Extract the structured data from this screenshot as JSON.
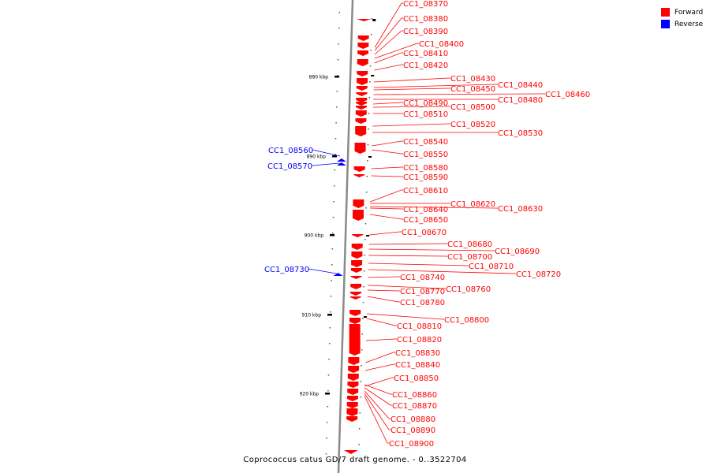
{
  "legend": [
    {
      "label": "Forward",
      "color": "#ff0000"
    },
    {
      "label": "Reverse",
      "color": "#0000ff"
    }
  ],
  "caption": "Coprococcus catus GD/7 draft genome. - 0..3522704",
  "scale_labels": [
    "880 kbp",
    "890 kbp",
    "900 kbp",
    "910 kbp",
    "920 kbp"
  ],
  "genes": [
    {
      "label": "CC1_08370",
      "strand": "forward"
    },
    {
      "label": "CC1_08380",
      "strand": "forward"
    },
    {
      "label": "CC1_08390",
      "strand": "forward"
    },
    {
      "label": "CC1_08400",
      "strand": "forward"
    },
    {
      "label": "CC1_08410",
      "strand": "forward"
    },
    {
      "label": "CC1_08420",
      "strand": "forward"
    },
    {
      "label": "CC1_08430",
      "strand": "forward"
    },
    {
      "label": "CC1_08440",
      "strand": "forward"
    },
    {
      "label": "CC1_08450",
      "strand": "forward"
    },
    {
      "label": "CC1_08460",
      "strand": "forward"
    },
    {
      "label": "CC1_08480",
      "strand": "forward"
    },
    {
      "label": "CC1_08490",
      "strand": "forward"
    },
    {
      "label": "CC1_08500",
      "strand": "forward"
    },
    {
      "label": "CC1_08510",
      "strand": "forward"
    },
    {
      "label": "CC1_08520",
      "strand": "forward"
    },
    {
      "label": "CC1_08530",
      "strand": "forward"
    },
    {
      "label": "CC1_08540",
      "strand": "forward"
    },
    {
      "label": "CC1_08550",
      "strand": "forward"
    },
    {
      "label": "CC1_08560",
      "strand": "reverse"
    },
    {
      "label": "CC1_08570",
      "strand": "reverse"
    },
    {
      "label": "CC1_08580",
      "strand": "forward"
    },
    {
      "label": "CC1_08590",
      "strand": "forward"
    },
    {
      "label": "CC1_08610",
      "strand": "forward"
    },
    {
      "label": "CC1_08620",
      "strand": "forward"
    },
    {
      "label": "CC1_08630",
      "strand": "forward"
    },
    {
      "label": "CC1_08640",
      "strand": "forward"
    },
    {
      "label": "CC1_08650",
      "strand": "forward"
    },
    {
      "label": "CC1_08670",
      "strand": "forward"
    },
    {
      "label": "CC1_08680",
      "strand": "forward"
    },
    {
      "label": "CC1_08690",
      "strand": "forward"
    },
    {
      "label": "CC1_08700",
      "strand": "forward"
    },
    {
      "label": "CC1_08710",
      "strand": "forward"
    },
    {
      "label": "CC1_08720",
      "strand": "forward"
    },
    {
      "label": "CC1_08730",
      "strand": "reverse"
    },
    {
      "label": "CC1_08740",
      "strand": "forward"
    },
    {
      "label": "CC1_08760",
      "strand": "forward"
    },
    {
      "label": "CC1_08770",
      "strand": "forward"
    },
    {
      "label": "CC1_08780",
      "strand": "forward"
    },
    {
      "label": "CC1_08800",
      "strand": "forward"
    },
    {
      "label": "CC1_08810",
      "strand": "forward"
    },
    {
      "label": "CC1_08820",
      "strand": "forward"
    },
    {
      "label": "CC1_08830",
      "strand": "forward"
    },
    {
      "label": "CC1_08840",
      "strand": "forward"
    },
    {
      "label": "CC1_08850",
      "strand": "forward"
    },
    {
      "label": "CC1_08860",
      "strand": "forward"
    },
    {
      "label": "CC1_08870",
      "strand": "forward"
    },
    {
      "label": "CC1_08880",
      "strand": "forward"
    },
    {
      "label": "CC1_08890",
      "strand": "forward"
    },
    {
      "label": "CC1_08900",
      "strand": "forward"
    }
  ]
}
